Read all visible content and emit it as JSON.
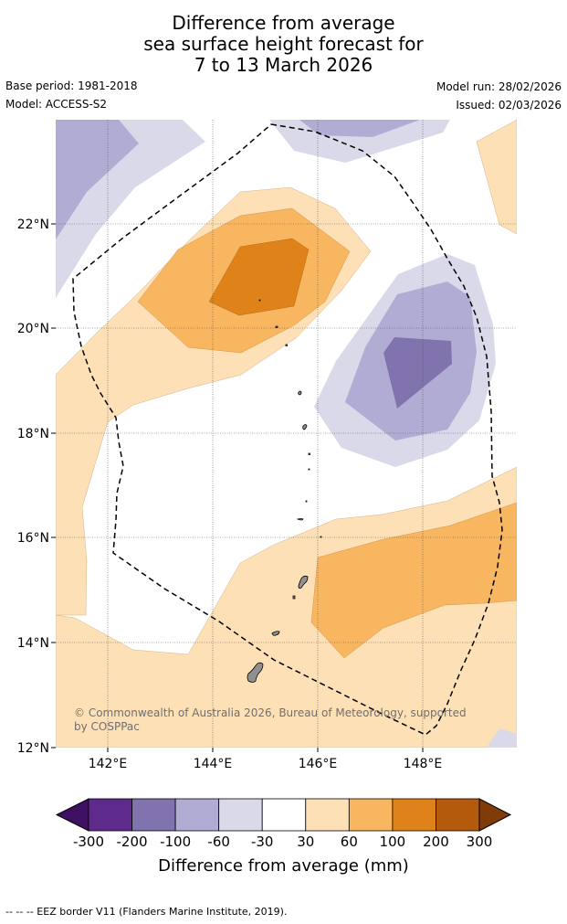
{
  "title": {
    "line1": "Difference from average",
    "line2": "sea surface height forecast for",
    "line3": "7 to 13 March 2026"
  },
  "meta": {
    "base_period": "Base period: 1981-2018",
    "model": "Model: ACCESS-S2",
    "model_run": "Model run: 28/02/2026",
    "issued": "Issued: 02/03/2026"
  },
  "map": {
    "lat_labels": [
      "22°N",
      "20°N",
      "18°N",
      "16°N",
      "14°N",
      "12°N"
    ],
    "lon_labels": [
      "142°E",
      "144°E",
      "146°E",
      "148°E"
    ],
    "credit": "© Commonwealth of Australia 2026, Bureau of Meteorology, supported by COSPPac",
    "extent": {
      "lon_min": 141,
      "lon_max": 149.8,
      "lat_min": 12,
      "lat_max": 24
    }
  },
  "colorbar": {
    "title": "Difference from average (mm)",
    "labels": [
      "-300",
      "-200",
      "-100",
      "-60",
      "-30",
      "30",
      "60",
      "100",
      "200",
      "300"
    ],
    "colors": [
      "#3f1163",
      "#5e2a8c",
      "#8073ae",
      "#b1acd3",
      "#d9d9ea",
      "#ffffff",
      "#fde0b6",
      "#f8b661",
      "#e0821a",
      "#b35a0d",
      "#7f3b08"
    ]
  },
  "footer": "--  --  -- EEZ border V11 (Flanders Marine Institute, 2019)."
}
